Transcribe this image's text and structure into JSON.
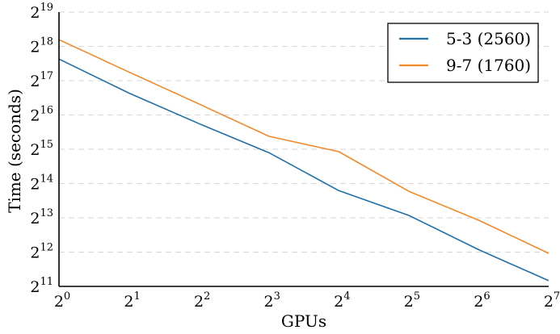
{
  "chart_data": {
    "type": "line",
    "x_scale": "log2",
    "y_scale": "log2",
    "xlabel": "GPUs",
    "ylabel": "Time (seconds)",
    "xlim": [
      1,
      128
    ],
    "ylim": [
      2048,
      524288
    ],
    "x_ticks": [
      {
        "base": "2",
        "exp": "0"
      },
      {
        "base": "2",
        "exp": "1"
      },
      {
        "base": "2",
        "exp": "2"
      },
      {
        "base": "2",
        "exp": "3"
      },
      {
        "base": "2",
        "exp": "4"
      },
      {
        "base": "2",
        "exp": "5"
      },
      {
        "base": "2",
        "exp": "6"
      },
      {
        "base": "2",
        "exp": "7"
      }
    ],
    "y_ticks": [
      {
        "base": "2",
        "exp": "11"
      },
      {
        "base": "2",
        "exp": "12"
      },
      {
        "base": "2",
        "exp": "13"
      },
      {
        "base": "2",
        "exp": "14"
      },
      {
        "base": "2",
        "exp": "15"
      },
      {
        "base": "2",
        "exp": "16"
      },
      {
        "base": "2",
        "exp": "17"
      },
      {
        "base": "2",
        "exp": "18"
      },
      {
        "base": "2",
        "exp": "19"
      }
    ],
    "grid": "horizontal-dashed",
    "legend_position": "top-right",
    "x": [
      1,
      2,
      4,
      8,
      16,
      32,
      64,
      128
    ],
    "series": [
      {
        "name": "5-3 (2560)",
        "color": "#1f6fa8",
        "values": [
          203000,
          102000,
          55000,
          30600,
          14200,
          8600,
          4300,
          2300
        ]
      },
      {
        "name": "9-7 (1760)",
        "color": "#f2892a",
        "values": [
          300000,
          156000,
          82000,
          42600,
          31200,
          14000,
          7800,
          4000
        ]
      }
    ]
  }
}
